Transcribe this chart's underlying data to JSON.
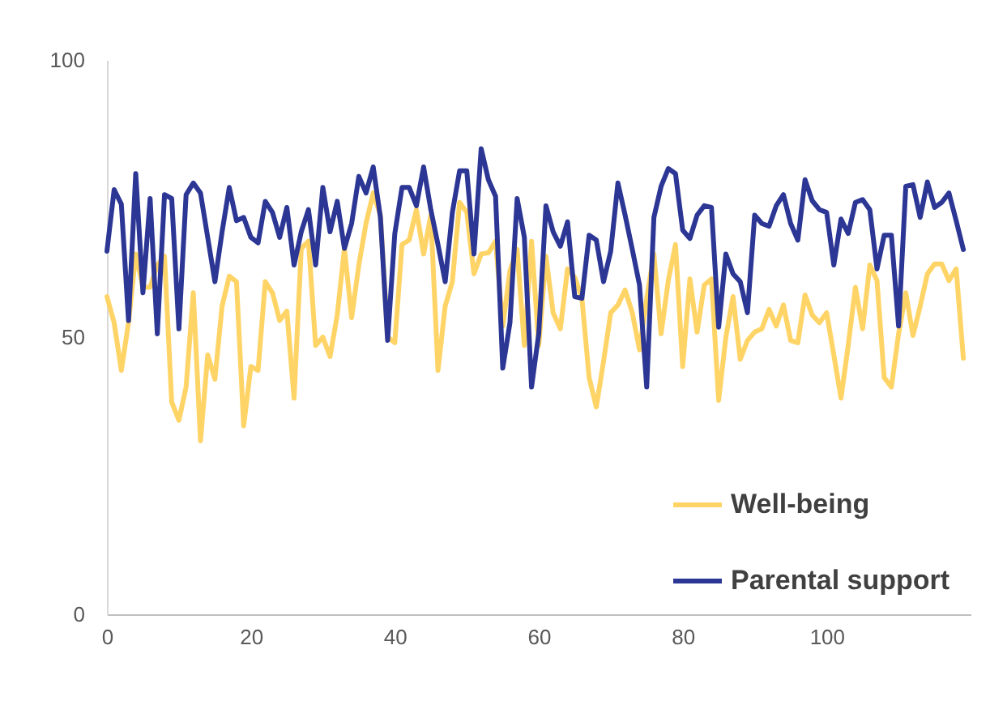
{
  "chart_data": {
    "type": "line",
    "xlim": [
      0,
      120
    ],
    "xticks": [
      0,
      20,
      40,
      60,
      80,
      100
    ],
    "ylim": [
      0,
      100
    ],
    "yticks": [
      0,
      50,
      100
    ],
    "grid": false,
    "legend": "bottom right",
    "x": [
      0,
      1,
      2,
      3,
      4,
      5,
      6,
      7,
      8,
      9,
      10,
      11,
      12,
      13,
      14,
      15,
      16,
      17,
      18,
      19,
      20,
      21,
      22,
      23,
      24,
      25,
      26,
      27,
      28,
      29,
      30,
      31,
      32,
      33,
      34,
      35,
      36,
      37,
      38,
      39,
      40,
      41,
      42,
      43,
      44,
      45,
      46,
      47,
      48,
      49,
      50,
      51,
      52,
      53,
      54,
      55,
      56,
      57,
      58,
      59,
      60,
      61,
      62,
      63,
      64,
      65,
      66,
      67,
      68,
      69,
      70,
      71,
      72,
      73,
      74,
      75,
      76,
      77,
      78,
      79,
      80,
      81,
      82,
      83,
      84,
      85,
      86,
      87,
      88,
      89,
      90,
      91,
      92,
      93,
      94,
      95,
      96,
      97,
      98,
      99,
      100,
      101,
      102,
      103,
      104,
      105,
      106,
      107,
      108,
      109,
      110,
      111,
      112,
      113,
      114,
      115,
      116,
      117,
      118,
      119
    ],
    "series": [
      {
        "name": "Well-being",
        "color": "#ffd467",
        "values": [
          57.3,
          52.6,
          44,
          52.6,
          65,
          59,
          59,
          63,
          64.6,
          38.3,
          35,
          41,
          58,
          31.3,
          46.8,
          42.4,
          55.6,
          61,
          60,
          34,
          44.7,
          44,
          60,
          58,
          53,
          54.7,
          39,
          66,
          67.3,
          48.5,
          50,
          46.5,
          54,
          66,
          53.5,
          63,
          70.5,
          76,
          72,
          50,
          49,
          66.7,
          67.5,
          73,
          65,
          72,
          44,
          55.6,
          60,
          74.3,
          72.5,
          61.4,
          65,
          65.2,
          67.3,
          52,
          62,
          65.8,
          48.5,
          67.3,
          48.5,
          64.6,
          54.4,
          51.5,
          62.3,
          60.8,
          57,
          42.7,
          37.4,
          45.6,
          54.4,
          55.8,
          58.5,
          54.4,
          47.7,
          57,
          65,
          50.6,
          60.2,
          66.7,
          44.7,
          60.5,
          50.9,
          59.4,
          60.5,
          38.6,
          50,
          57.3,
          46,
          49.4,
          50.9,
          51.5,
          55,
          52,
          55.8,
          49.4,
          49,
          57.6,
          54,
          52.6,
          54.4,
          46.8,
          39,
          48.5,
          59,
          51.5,
          63,
          60.2,
          42.7,
          41,
          50.6,
          58,
          50.3,
          55.6,
          61.4,
          63.2,
          63.2,
          60.2,
          62.3,
          46.2
        ]
      },
      {
        "name": "Parental support",
        "color": "#2c3694",
        "values": [
          65.5,
          76.6,
          74,
          53,
          79.5,
          58,
          75,
          50.6,
          75.7,
          75,
          51.5,
          75.7,
          77.8,
          76,
          68,
          60,
          69,
          77,
          71,
          71.6,
          68,
          67,
          74.5,
          72.5,
          68,
          73.4,
          63,
          69,
          73,
          63,
          77,
          69,
          74.5,
          66,
          70.5,
          79,
          76,
          80.7,
          71.6,
          49.4,
          68.7,
          77,
          77,
          73.7,
          80.7,
          73,
          66.7,
          60,
          72.5,
          80,
          80,
          65,
          84,
          78.4,
          75.4,
          44.4,
          52.6,
          75,
          68,
          41,
          50.6,
          73.7,
          69,
          66.4,
          70.8,
          57.3,
          57,
          68.4,
          67.5,
          60,
          65.5,
          77.8,
          72,
          65.8,
          59.4,
          41,
          71.6,
          77.2,
          80.4,
          79.5,
          69.3,
          67.8,
          72,
          73.7,
          73.4,
          51.8,
          65,
          61.4,
          60,
          54.4,
          72,
          70.5,
          70,
          73.7,
          75.7,
          70.5,
          67.5,
          78.4,
          74.6,
          73,
          72.5,
          63,
          71.3,
          68.7,
          74.3,
          74.8,
          73,
          62.3,
          68.4,
          68.4,
          52,
          77.2,
          77.5,
          71.6,
          78,
          73.4,
          74.3,
          76,
          71,
          65.8
        ]
      }
    ]
  }
}
